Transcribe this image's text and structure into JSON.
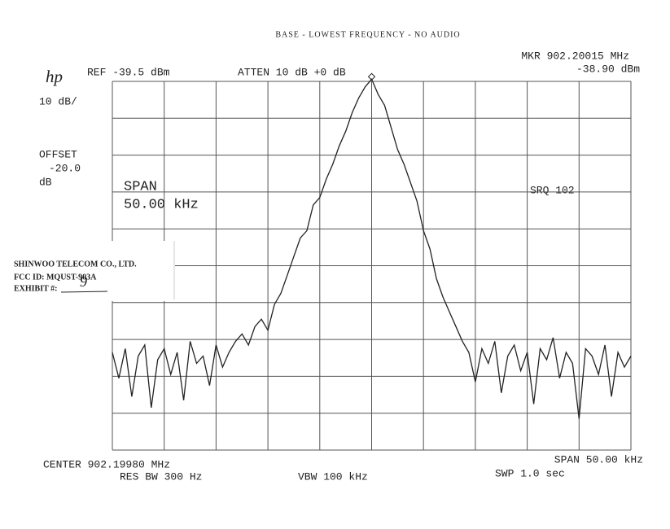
{
  "chart_data": {
    "type": "line",
    "title": "BASE - LOWEST FREQUENCY - NO AUDIO",
    "color": "#222222",
    "ylim": [
      -139.5,
      -39.5
    ],
    "values": [
      -113,
      -120,
      -112,
      -125,
      -114,
      -111,
      -128,
      -115,
      -112,
      -119,
      -113,
      -126,
      -110,
      -116,
      -114,
      -122,
      -111,
      -117,
      -113,
      -110,
      -108,
      -111,
      -106,
      -104,
      -107,
      -100,
      -97,
      -92,
      -87,
      -82,
      -80,
      -73,
      -71,
      -66,
      -62,
      -57,
      -53,
      -48,
      -44,
      -41,
      -38.9,
      -43,
      -46,
      -52,
      -58,
      -62,
      -67,
      -72,
      -80,
      -85,
      -93,
      -98,
      -102,
      -106,
      -110,
      -113,
      -121,
      -112,
      -116,
      -110,
      -124,
      -114,
      -111,
      -118,
      -113,
      -127,
      -112,
      -115,
      -109,
      -120,
      -113,
      -116,
      -131,
      -112,
      -114,
      -119,
      -111,
      -125,
      -113,
      -117,
      -114
    ],
    "annotations": {
      "logo": "hp",
      "ref": "REF -39.5 dBm",
      "atten": "ATTEN 10 dB +0 dB",
      "marker_freq": "MKR 902.20015 MHz",
      "marker_level": "-38.90 dBm",
      "scale": "10 dB/",
      "offset_label": "OFFSET",
      "offset_value": "-20.0",
      "offset_unit": "dB",
      "span_label": "SPAN",
      "span_value": "50.00 kHz",
      "srq": "SRQ 102",
      "center": "CENTER 902.19980 MHz",
      "span_bottom": "SPAN 50.00 kHz",
      "res_bw": "RES BW 300 Hz",
      "vbw": "VBW 100 kHz",
      "sweep": "SWP 1.0 sec"
    },
    "exhibit": {
      "company": "SHINWOO TELECOM CO., LTD.",
      "fcc_id": "FCC ID:  MQUST-903A",
      "exhibit_label": "EXHIBIT #:",
      "exhibit_number": "9"
    }
  }
}
